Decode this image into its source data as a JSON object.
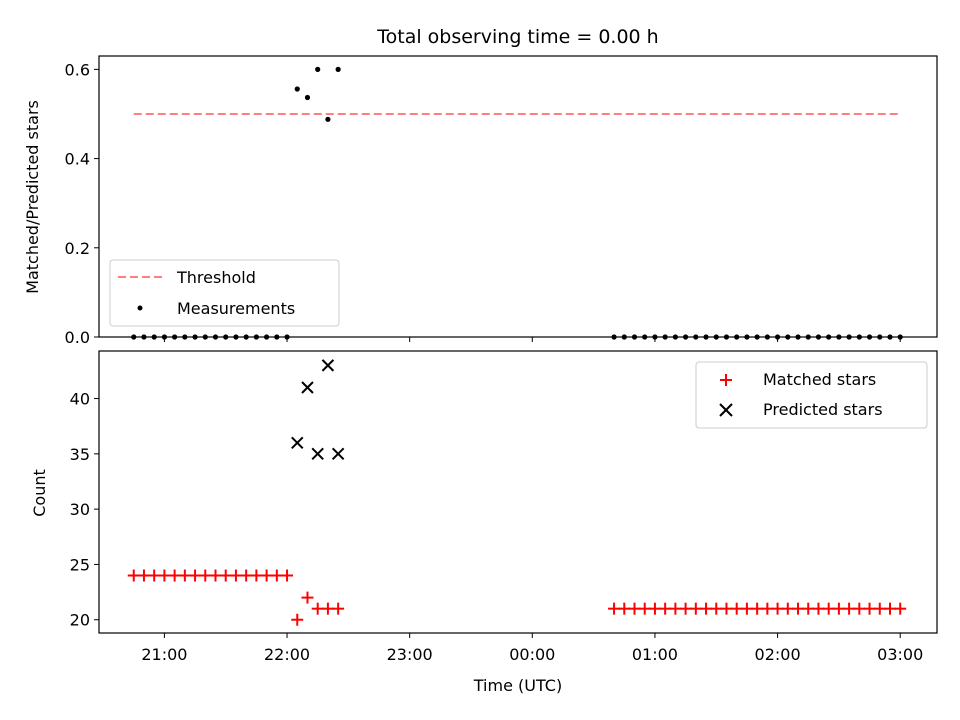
{
  "chart_data": [
    {
      "type": "scatter",
      "title": "Total observing time = 0.00 h",
      "xlabel": "",
      "ylabel": "Matched/Predicted stars",
      "ylim": [
        0,
        0.63
      ],
      "yticks": [
        "0.0",
        "0.2",
        "0.4",
        "0.6"
      ],
      "threshold": {
        "name": "Threshold",
        "value": 0.5,
        "x": [
          "20:45",
          "03:00"
        ],
        "color": "#ff7f7f"
      },
      "measurements": {
        "name": "Measurements",
        "color": "#000000",
        "x": [
          "20:45",
          "20:50",
          "20:55",
          "21:00",
          "21:05",
          "21:10",
          "21:15",
          "21:20",
          "21:25",
          "21:30",
          "21:35",
          "21:40",
          "21:45",
          "21:50",
          "21:55",
          "22:00",
          "22:05",
          "22:10",
          "22:15",
          "22:20",
          "22:25",
          "00:40",
          "00:45",
          "00:50",
          "00:55",
          "01:00",
          "01:05",
          "01:10",
          "01:15",
          "01:20",
          "01:25",
          "01:30",
          "01:35",
          "01:40",
          "01:45",
          "01:50",
          "01:55",
          "02:00",
          "02:05",
          "02:10",
          "02:15",
          "02:20",
          "02:25",
          "02:30",
          "02:35",
          "02:40",
          "02:45",
          "02:50",
          "02:55",
          "03:00"
        ],
        "y": [
          0,
          0,
          0,
          0,
          0,
          0,
          0,
          0,
          0,
          0,
          0,
          0,
          0,
          0,
          0,
          0,
          0.556,
          0.537,
          0.6,
          0.488,
          0.6,
          0,
          0,
          0,
          0,
          0,
          0,
          0,
          0,
          0,
          0,
          0,
          0,
          0,
          0,
          0,
          0,
          0,
          0,
          0,
          0,
          0,
          0,
          0,
          0,
          0,
          0,
          0,
          0,
          0
        ]
      },
      "legend_position": "lower-left",
      "grid": false
    },
    {
      "type": "scatter",
      "title": "",
      "xlabel": "Time (UTC)",
      "ylabel": "Count",
      "ylim": [
        18.8,
        44.3
      ],
      "yticks": [
        "20",
        "25",
        "30",
        "35",
        "40"
      ],
      "xlim": [
        "20:28",
        "03:18"
      ],
      "xticks": [
        "21:00",
        "22:00",
        "23:00",
        "00:00",
        "01:00",
        "02:00",
        "03:00"
      ],
      "matched": {
        "name": "Matched stars",
        "color": "#ff0000",
        "x": [
          "20:45",
          "20:50",
          "20:55",
          "21:00",
          "21:05",
          "21:10",
          "21:15",
          "21:20",
          "21:25",
          "21:30",
          "21:35",
          "21:40",
          "21:45",
          "21:50",
          "21:55",
          "22:00",
          "22:05",
          "22:10",
          "22:15",
          "22:20",
          "22:25",
          "00:40",
          "00:45",
          "00:50",
          "00:55",
          "01:00",
          "01:05",
          "01:10",
          "01:15",
          "01:20",
          "01:25",
          "01:30",
          "01:35",
          "01:40",
          "01:45",
          "01:50",
          "01:55",
          "02:00",
          "02:05",
          "02:10",
          "02:15",
          "02:20",
          "02:25",
          "02:30",
          "02:35",
          "02:40",
          "02:45",
          "02:50",
          "02:55",
          "03:00"
        ],
        "y": [
          24,
          24,
          24,
          24,
          24,
          24,
          24,
          24,
          24,
          24,
          24,
          24,
          24,
          24,
          24,
          24,
          20,
          22,
          21,
          21,
          21,
          21,
          21,
          21,
          21,
          21,
          21,
          21,
          21,
          21,
          21,
          21,
          21,
          21,
          21,
          21,
          21,
          21,
          21,
          21,
          21,
          21,
          21,
          21,
          21,
          21,
          21,
          21,
          21,
          21
        ]
      },
      "predicted": {
        "name": "Predicted stars",
        "color": "#000000",
        "x": [
          "22:05",
          "22:10",
          "22:15",
          "22:20",
          "22:25"
        ],
        "y": [
          36,
          41,
          35,
          43,
          35
        ]
      },
      "legend_position": "top-right",
      "grid": false
    }
  ]
}
